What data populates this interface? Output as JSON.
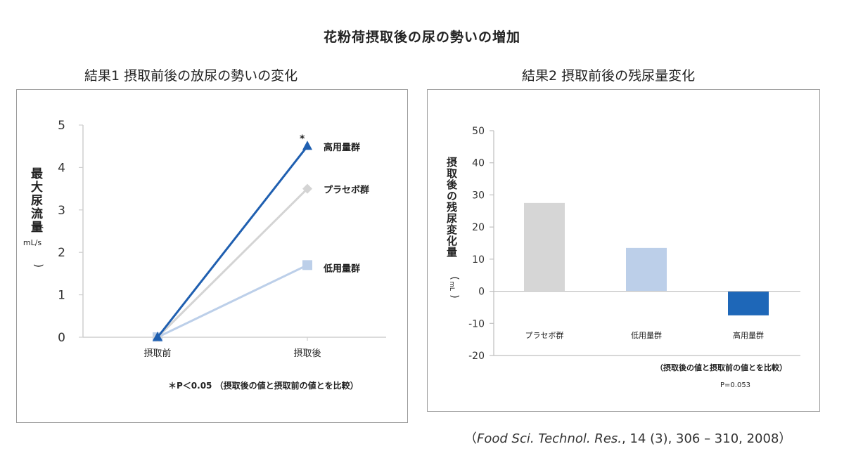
{
  "main_title": "花粉荷摂取後の尿の勢いの増加",
  "citation": {
    "open": "（",
    "journal": "Food Sci. Technol. Res.",
    "rest": ", 14 (3), 306 – 310, 2008）"
  },
  "chart_data": [
    {
      "type": "line",
      "title": "結果1 摂取前後の放尿の勢いの変化",
      "ylabel": "最大尿流量（mL/s）",
      "ylabel_main": "最大尿流量",
      "ylabel_unit": "mL/s",
      "categories": [
        "摂取前",
        "摂取後"
      ],
      "ylim": [
        0,
        5
      ],
      "yticks": [
        "0",
        "1",
        "2",
        "3",
        "4",
        "5"
      ],
      "series": [
        {
          "name": "高用量群",
          "values": [
            0,
            4.5
          ],
          "color": "#1f5fb0",
          "marker": "triangle"
        },
        {
          "name": "プラセボ群",
          "values": [
            0,
            3.5
          ],
          "color": "#d4d4d4",
          "marker": "diamond"
        },
        {
          "name": "低用量群",
          "values": [
            0,
            1.7
          ],
          "color": "#bccfe9",
          "marker": "square"
        }
      ],
      "annotation_star": "*",
      "footnote": "＊P＜0.05 （摂取後の値と摂取前の値とを比較）"
    },
    {
      "type": "bar",
      "title": "結果2 摂取前後の残尿量変化",
      "ylabel": "摂取後の残尿変化量（mL）",
      "ylabel_main": "摂取後の残尿変化量",
      "ylabel_unit": "mL",
      "categories": [
        "プラセボ群",
        "低用量群",
        "高用量群"
      ],
      "values": [
        27.5,
        13.5,
        -7.5
      ],
      "colors": [
        "#d6d6d6",
        "#bccfe9",
        "#1e67b8"
      ],
      "ylim": [
        -20,
        50
      ],
      "yticks": [
        "50",
        "40",
        "30",
        "20",
        "10",
        "0",
        "-10",
        "-20"
      ],
      "footnote": "（摂取後の値と摂取前の値とを比較）",
      "pvalue": "P=0.053"
    }
  ]
}
